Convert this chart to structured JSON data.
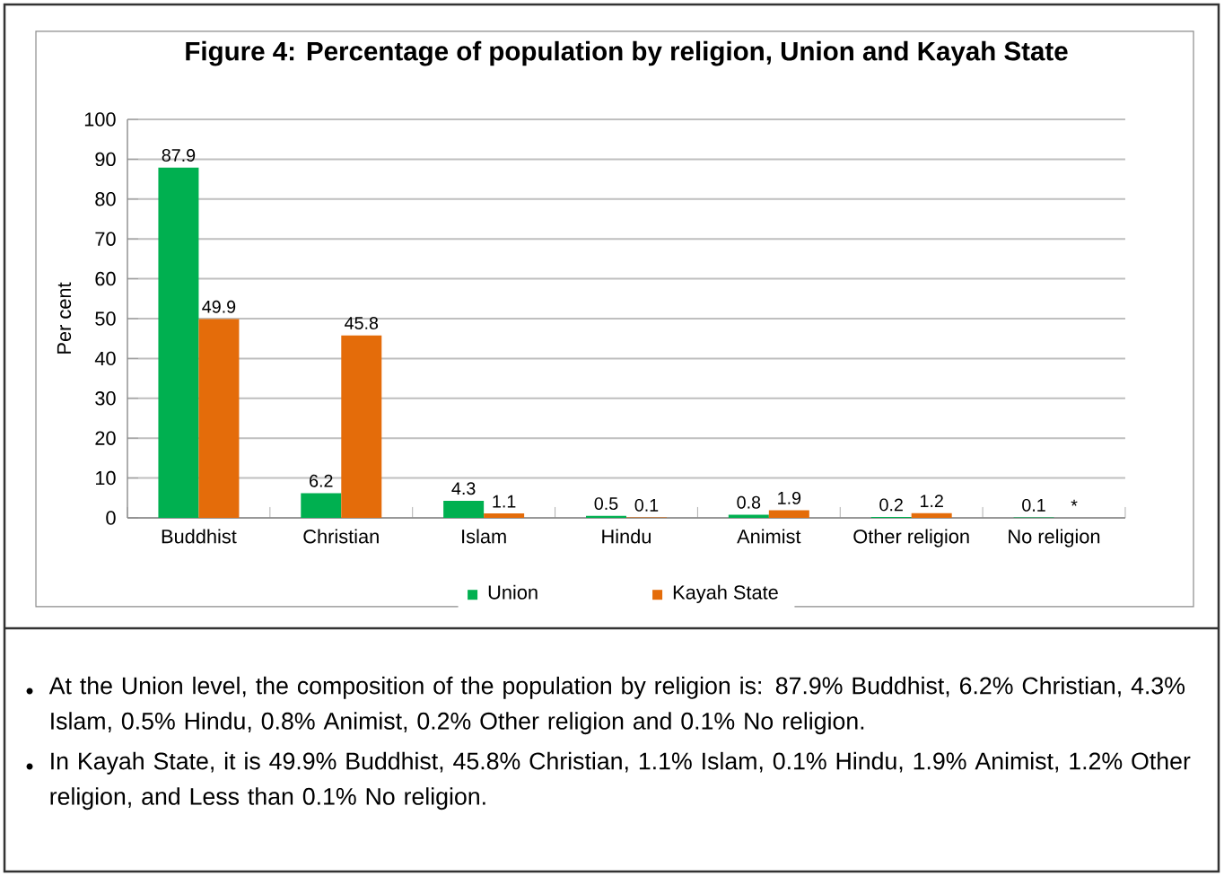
{
  "chart_data": {
    "type": "bar",
    "title": "Figure 4: Percentage of population by religion, Union and Kayah  State",
    "ylabel": "Per cent",
    "categories": [
      "Buddhist",
      "Christian",
      "Islam",
      "Hindu",
      "Animist",
      "Other religion",
      "No religion"
    ],
    "series": [
      {
        "name": "Union",
        "color": "#00b050",
        "values": [
          87.9,
          6.2,
          4.3,
          0.5,
          0.8,
          0.2,
          0.1
        ],
        "value_labels": [
          "87.9",
          "6.2",
          "4.3",
          "0.5",
          "0.8",
          "0.2",
          "0.1"
        ]
      },
      {
        "name": "Kayah State",
        "color": "#e46c0a",
        "values": [
          49.9,
          45.8,
          1.1,
          0.1,
          1.9,
          1.2,
          null
        ],
        "value_labels": [
          "49.9",
          "45.8",
          "1.1",
          "0.1",
          "1.9",
          "1.2",
          "*"
        ]
      }
    ],
    "ylim": [
      0,
      100
    ],
    "yticks": [
      0,
      10,
      20,
      30,
      40,
      50,
      60,
      70,
      80,
      90,
      100
    ],
    "grid": "y",
    "legend": "bottom",
    "annotations": [
      "At the Union level, the composition of the population by religion is: 87.9% Buddhist, 6.2% Christian, 4.3% Islam, 0.5% Hindu, 0.8% Animist, 0.2% Other religion and 0.1% No religion.",
      "In Kayah State, it is 49.9% Buddhist, 45.8% Christian, 1.1% Islam, 0.1% Hindu, 1.9% Animist, 1.2% Other religion, and Less than 0.1% No religion."
    ]
  }
}
